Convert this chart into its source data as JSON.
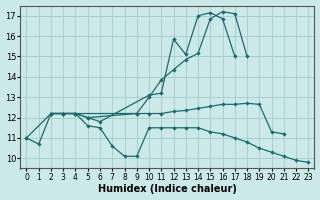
{
  "xlabel": "Humidex (Indice chaleur)",
  "bg_color": "#cce9e9",
  "grid_color": "#aacfcf",
  "line_color": "#1a6b6b",
  "xlim": [
    -0.5,
    23.5
  ],
  "ylim": [
    9.5,
    17.5
  ],
  "xticks": [
    0,
    1,
    2,
    3,
    4,
    5,
    6,
    7,
    8,
    9,
    10,
    11,
    12,
    13,
    14,
    15,
    16,
    17,
    18,
    19,
    20,
    21,
    22,
    23
  ],
  "yticks": [
    10,
    11,
    12,
    13,
    14,
    15,
    16,
    17
  ],
  "lines": [
    {
      "x": [
        0,
        1,
        2,
        3,
        4,
        5,
        6,
        7,
        8,
        9,
        10,
        11,
        12,
        13,
        14,
        15,
        16,
        17,
        18,
        19,
        20,
        21,
        22,
        23
      ],
      "y": [
        11.0,
        10.7,
        12.2,
        12.2,
        12.2,
        11.6,
        11.5,
        10.6,
        10.1,
        10.1,
        11.5,
        11.5,
        11.5,
        11.5,
        11.5,
        11.3,
        11.2,
        11.0,
        10.8,
        10.5,
        10.3,
        10.1,
        9.9,
        9.8
      ]
    },
    {
      "x": [
        2,
        3,
        4,
        5,
        6,
        10,
        11,
        12,
        13,
        14,
        15,
        16,
        17,
        18
      ],
      "y": [
        12.2,
        12.2,
        12.2,
        12.0,
        11.8,
        13.1,
        13.2,
        15.85,
        15.1,
        17.0,
        17.15,
        16.85,
        15.0,
        null
      ]
    },
    {
      "x": [
        0,
        2,
        3,
        4,
        9,
        10,
        11,
        12,
        13,
        14,
        15,
        16,
        17,
        18
      ],
      "y": [
        11.0,
        12.2,
        12.2,
        12.2,
        12.2,
        13.0,
        13.85,
        14.35,
        14.85,
        15.15,
        16.85,
        17.2,
        17.1,
        15.0
      ]
    },
    {
      "x": [
        2,
        3,
        4,
        5,
        9,
        10,
        11,
        12,
        13,
        14,
        15,
        16,
        17,
        18,
        19,
        20,
        21
      ],
      "y": [
        12.2,
        12.2,
        12.2,
        12.0,
        12.2,
        12.2,
        12.2,
        12.3,
        12.35,
        12.45,
        12.55,
        12.65,
        12.65,
        12.7,
        12.65,
        11.3,
        11.2
      ]
    }
  ]
}
